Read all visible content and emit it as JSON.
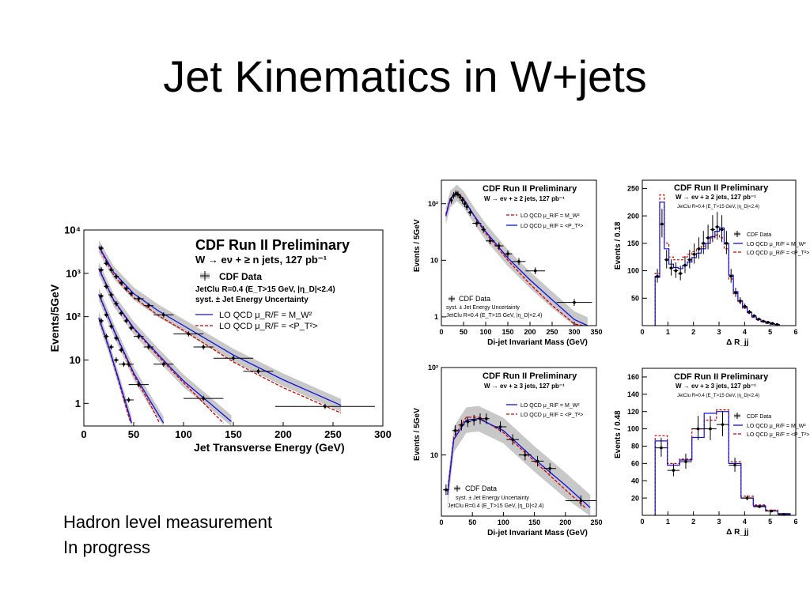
{
  "slide": {
    "title": "Jet Kinematics in W+jets",
    "note_lines": [
      "Hadron level measurement",
      "In progress"
    ]
  },
  "colors": {
    "data": "#000000",
    "band": "#c8c8c8",
    "lo_mw": "#d40000",
    "lo_pt": "#1010dd"
  },
  "chart_data": [
    {
      "id": "jet-et",
      "type": "scatter",
      "title": "CDF Run II Preliminary",
      "subtitle": "W → eν + ≥ n jets, 127 pb⁻¹",
      "xlabel": "Jet Transverse Energy (GeV)",
      "ylabel": "Events/5GeV",
      "xlim": [
        0,
        300
      ],
      "ylim": [
        0.3,
        10000
      ],
      "log_y": true,
      "xticks": [
        0,
        50,
        100,
        150,
        200,
        250,
        300
      ],
      "yticks": [
        {
          "v": 1,
          "t": "1"
        },
        {
          "v": 10,
          "t": "10"
        },
        {
          "v": 100,
          "t": "10²"
        },
        {
          "v": 1000,
          "t": "10³"
        },
        {
          "v": 10000,
          "t": "10⁴"
        }
      ],
      "legend": {
        "placement": "top-right",
        "data_label": "CDF Data",
        "cuts": "JetClu R=0.4 (E_T>15 GeV, |η_D|<2.4)",
        "syst": "syst. ± Jet Energy Uncertainty",
        "lo_mw": "LO QCD  μ_R/F = M_W²",
        "lo_pt": "LO QCD  μ_R/F = <P_T²>"
      },
      "series": [
        {
          "jets": 1,
          "x": [
            17.5,
            22.5,
            27.5,
            32.5,
            37.5,
            42.5,
            47.5,
            55,
            65,
            80,
            105,
            120,
            150,
            175,
            242
          ],
          "y": [
            3800,
            1700,
            1200,
            850,
            600,
            440,
            340,
            260,
            180,
            110,
            40,
            20,
            11,
            5.5,
            0.85
          ],
          "xerr": [
            2.5,
            2.5,
            2.5,
            2.5,
            2.5,
            2.5,
            2.5,
            5,
            5,
            10,
            15,
            10,
            20,
            15,
            50
          ],
          "blue": [
            [
              15,
              4200
            ],
            [
              30,
              1050
            ],
            [
              50,
              340
            ],
            [
              75,
              135
            ],
            [
              100,
              62
            ],
            [
              150,
              13
            ],
            [
              200,
              3.5
            ],
            [
              258,
              0.9
            ]
          ],
          "red": [
            [
              15,
              4000
            ],
            [
              30,
              900
            ],
            [
              50,
              280
            ],
            [
              75,
              105
            ],
            [
              100,
              48
            ],
            [
              150,
              9
            ],
            [
              200,
              2.3
            ],
            [
              258,
              0.6
            ]
          ]
        },
        {
          "jets": 2,
          "x": [
            17.5,
            22.5,
            27.5,
            32.5,
            37.5,
            42.5,
            47.5,
            55,
            65,
            80,
            120
          ],
          "y": [
            1200,
            500,
            320,
            200,
            120,
            80,
            55,
            35,
            20,
            8,
            1.3
          ],
          "xerr": [
            2.5,
            2.5,
            2.5,
            2.5,
            2.5,
            2.5,
            2.5,
            5,
            5,
            10,
            20
          ],
          "blue": [
            [
              15,
              1300
            ],
            [
              30,
              240
            ],
            [
              50,
              55
            ],
            [
              75,
              13
            ],
            [
              100,
              3.3
            ],
            [
              148,
              0.38
            ]
          ],
          "red": [
            [
              15,
              1250
            ],
            [
              30,
              230
            ],
            [
              50,
              52
            ],
            [
              75,
              12
            ],
            [
              100,
              3
            ],
            [
              140,
              0.35
            ]
          ]
        },
        {
          "jets": 3,
          "x": [
            17.5,
            22.5,
            27.5,
            32.5,
            37.5,
            45,
            55
          ],
          "y": [
            300,
            110,
            60,
            32,
            17,
            8,
            2.7
          ],
          "xerr": [
            2.5,
            2.5,
            2.5,
            2.5,
            2.5,
            5,
            10
          ],
          "blue": [
            [
              15,
              330
            ],
            [
              30,
              50
            ],
            [
              50,
              5
            ],
            [
              65,
              1.3
            ],
            [
              80,
              0.35
            ]
          ],
          "red": [
            [
              15,
              320
            ],
            [
              30,
              48
            ],
            [
              50,
              4.5
            ],
            [
              65,
              1.1
            ],
            [
              76,
              0.35
            ]
          ]
        },
        {
          "jets": 4,
          "x": [
            17.5,
            22.5,
            27.5,
            32.5,
            40,
            45
          ],
          "y": [
            80,
            35,
            20,
            10,
            8,
            1.2
          ],
          "xerr": [
            2.5,
            2.5,
            2.5,
            2.5,
            5,
            5
          ],
          "blue": [
            [
              15,
              95
            ],
            [
              25,
              20
            ],
            [
              35,
              3.5
            ],
            [
              45,
              0.6
            ],
            [
              48,
              0.35
            ]
          ],
          "red": [
            [
              15,
              90
            ],
            [
              25,
              19
            ],
            [
              35,
              3.2
            ],
            [
              45,
              0.5
            ],
            [
              47,
              0.35
            ]
          ]
        }
      ]
    },
    {
      "id": "mjj-2jets",
      "type": "scatter",
      "title": "CDF Run II Preliminary",
      "subtitle": "W → eν + ≥ 2 jets, 127 pb⁻¹",
      "xlabel": "Di-jet Invariant Mass (GeV)",
      "ylabel": "Events / 5GeV",
      "xlim": [
        0,
        350
      ],
      "ylim": [
        0.7,
        260
      ],
      "log_y": true,
      "xticks": [
        0,
        50,
        100,
        150,
        200,
        250,
        300,
        350
      ],
      "yticks": [
        {
          "v": 1,
          "t": "1"
        },
        {
          "v": 10,
          "t": "10"
        },
        {
          "v": 100,
          "t": "10²"
        }
      ],
      "legend": {
        "placement": "top-right",
        "lo_mw": "LO QCD  μ_R/F = M_W²",
        "lo_pt": "LO QCD  μ_R/F = <P_T²>",
        "data_label": "CDF Data",
        "syst": "syst. ± Jet Energy Uncertainty",
        "cuts": "JetClu R=0.4 (E_T>15 GeV, |η_D|<2.4)"
      },
      "x": [
        22.5,
        27.5,
        32.5,
        37.5,
        42.5,
        47.5,
        52.5,
        57.5,
        65,
        80,
        95,
        110,
        130,
        150,
        175,
        212,
        300
      ],
      "y": [
        115,
        140,
        150,
        145,
        130,
        115,
        100,
        88,
        70,
        45,
        35,
        22,
        18,
        13,
        9.5,
        6.5,
        1.8
      ],
      "xerr": [
        2.5,
        2.5,
        2.5,
        2.5,
        2.5,
        2.5,
        2.5,
        2.5,
        5,
        10,
        5,
        10,
        10,
        10,
        15,
        22,
        40
      ],
      "blue": [
        [
          10,
          60
        ],
        [
          20,
          120
        ],
        [
          35,
          155
        ],
        [
          50,
          120
        ],
        [
          75,
          60
        ],
        [
          100,
          32
        ],
        [
          150,
          11
        ],
        [
          200,
          4.5
        ],
        [
          250,
          2
        ],
        [
          300,
          0.9
        ],
        [
          330,
          0.7
        ]
      ],
      "red": [
        [
          10,
          65
        ],
        [
          20,
          125
        ],
        [
          35,
          160
        ],
        [
          50,
          125
        ],
        [
          75,
          58
        ],
        [
          100,
          30
        ],
        [
          150,
          10
        ],
        [
          200,
          3.8
        ],
        [
          250,
          1.6
        ],
        [
          300,
          0.75
        ],
        [
          320,
          0.7
        ]
      ]
    },
    {
      "id": "drjj-2jets",
      "type": "line",
      "title": "CDF Run II Preliminary",
      "subtitle": "W → eν + ≥ 2 jets, 127 pb⁻¹",
      "xlabel": "Δ R_jj",
      "ylabel": "Events / 0.18",
      "xlim": [
        0,
        6
      ],
      "ylim": [
        0,
        265
      ],
      "xticks": [
        0,
        1,
        2,
        3,
        4,
        5,
        6
      ],
      "yticks": [
        {
          "v": 50,
          "t": "50"
        },
        {
          "v": 100,
          "t": "100"
        },
        {
          "v": 150,
          "t": "150"
        },
        {
          "v": 200,
          "t": "200"
        },
        {
          "v": 250,
          "t": "250"
        }
      ],
      "legend": {
        "placement": "top-right",
        "cuts": "JetClu R=0.4 (E_T>15 GeV, |η_D|<2.4)",
        "data_label": "CDF Data",
        "lo_mw": "LO QCD  μ_R/F = M_W²",
        "lo_pt": "LO QCD  μ_R/F = <P_T²>"
      },
      "x": [
        0.5,
        0.68,
        0.86,
        1.04,
        1.22,
        1.4,
        1.58,
        1.76,
        1.94,
        2.12,
        2.3,
        2.48,
        2.66,
        2.84,
        3.02,
        3.2,
        3.38,
        3.56,
        3.74,
        3.92,
        4.1,
        4.28,
        4.46,
        4.64,
        4.82,
        5.0,
        5.18
      ],
      "y": [
        90,
        185,
        120,
        105,
        100,
        95,
        110,
        120,
        130,
        140,
        150,
        160,
        175,
        180,
        175,
        150,
        90,
        60,
        45,
        35,
        25,
        18,
        12,
        8,
        6,
        4,
        2
      ],
      "red": [
        95,
        238,
        150,
        125,
        120,
        120,
        125,
        130,
        135,
        140,
        145,
        150,
        160,
        165,
        160,
        140,
        85,
        58,
        42,
        32,
        22,
        15,
        10,
        7,
        4,
        3,
        2
      ],
      "blue": [
        88,
        225,
        140,
        112,
        106,
        104,
        110,
        116,
        124,
        132,
        140,
        150,
        162,
        172,
        178,
        150,
        92,
        62,
        45,
        34,
        24,
        16,
        11,
        8,
        5,
        3,
        2
      ]
    },
    {
      "id": "mjj-3jets",
      "type": "scatter",
      "title": "CDF Run II Preliminary",
      "subtitle": "W → eν + ≥ 3 jets, 127 pb⁻¹",
      "xlabel": "Di-jet Invariant Mass (GeV)",
      "ylabel": "Events / 5GeV",
      "xlim": [
        0,
        250
      ],
      "ylim": [
        2,
        100
      ],
      "log_y": true,
      "xticks": [
        0,
        50,
        100,
        150,
        200,
        250
      ],
      "yticks": [
        {
          "v": 10,
          "t": "10"
        },
        {
          "v": 100,
          "t": "10²"
        }
      ],
      "legend": {
        "placement": "top-right",
        "lo_mw": "LO QCD  μ_R/F = M_W²",
        "lo_pt": "LO QCD  μ_R/F = <P_T²>",
        "data_label": "CDF Data",
        "syst": "syst. ± Jet Energy Uncertainty",
        "cuts": "JetClu R=0.4 (E_T>15 GeV, |η_D|<2.4)"
      },
      "x": [
        7.5,
        22.5,
        32.5,
        42.5,
        52.5,
        62.5,
        72.5,
        95,
        115,
        135,
        155,
        175,
        225
      ],
      "y": [
        4,
        19,
        22,
        24,
        25,
        26,
        26,
        21,
        15,
        10,
        8.5,
        7,
        3
      ],
      "xerr": [
        5,
        5,
        5,
        5,
        5,
        5,
        5,
        10,
        10,
        10,
        10,
        10,
        25
      ],
      "blue": [
        [
          10,
          3.5
        ],
        [
          20,
          15
        ],
        [
          40,
          25
        ],
        [
          60,
          26
        ],
        [
          100,
          19
        ],
        [
          150,
          9
        ],
        [
          200,
          4.5
        ],
        [
          240,
          2.5
        ]
      ],
      "red": [
        [
          10,
          3.8
        ],
        [
          20,
          16
        ],
        [
          40,
          27
        ],
        [
          60,
          27
        ],
        [
          100,
          18
        ],
        [
          150,
          8.5
        ],
        [
          200,
          4
        ],
        [
          232,
          2.5
        ]
      ]
    },
    {
      "id": "drjj-3jets",
      "type": "line",
      "title": "CDF Run II Preliminary",
      "subtitle": "W → eν + ≥ 3 jets, 127 pb⁻¹",
      "xlabel": "Δ R_jj",
      "ylabel": "Events / 0.48",
      "xlim": [
        0,
        6
      ],
      "ylim": [
        0,
        170
      ],
      "xticks": [
        0,
        1,
        2,
        3,
        4,
        5,
        6
      ],
      "yticks": [
        {
          "v": 20,
          "t": "20"
        },
        {
          "v": 40,
          "t": "40"
        },
        {
          "v": 60,
          "t": "60"
        },
        {
          "v": 80,
          "t": "80"
        },
        {
          "v": 100,
          "t": "100"
        },
        {
          "v": 120,
          "t": "120"
        },
        {
          "v": 140,
          "t": "140"
        },
        {
          "v": 160,
          "t": "160"
        }
      ],
      "legend": {
        "placement": "top-right",
        "cuts": "JetClu R=0.4 (E_T>15 GeV, |η_D|<2.4)",
        "data_label": "CDF Data",
        "lo_mw": "LO QCD  μ_R/F = M_W²",
        "lo_pt": "LO QCD  μ_R/F = <P_T²>"
      },
      "x": [
        0.5,
        0.98,
        1.46,
        1.94,
        2.42,
        2.9,
        3.38,
        3.86,
        4.34,
        4.82,
        5.3
      ],
      "y": [
        78,
        52,
        62,
        100,
        100,
        105,
        58,
        20,
        10,
        5,
        1
      ],
      "red": [
        92,
        60,
        65,
        100,
        110,
        122,
        62,
        22,
        12,
        6,
        2
      ],
      "blue": [
        86,
        58,
        64,
        90,
        118,
        120,
        60,
        20,
        11,
        5,
        2
      ]
    }
  ]
}
